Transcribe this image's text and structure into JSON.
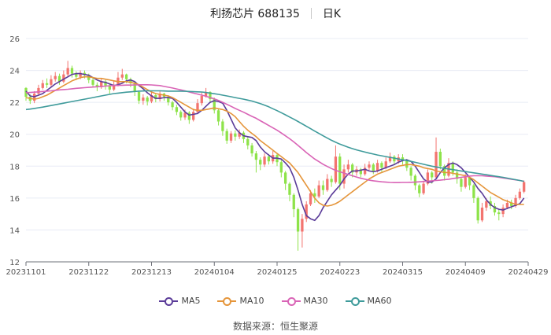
{
  "header": {
    "name": "利扬芯片 688135",
    "period": "日K"
  },
  "source": "数据来源：恒生聚源",
  "colors": {
    "up": "#f3746f",
    "down": "#8ee34a",
    "ma5": "#5b3c99",
    "ma10": "#e5953a",
    "ma30": "#d964b6",
    "ma60": "#3f9b9b"
  },
  "chart_data": {
    "type": "candlestick",
    "title": "利扬芯片 688135",
    "ylim": [
      12,
      26
    ],
    "yticks": [
      12,
      14,
      16,
      18,
      20,
      22,
      24,
      26
    ],
    "x_ticks": [
      "20231101",
      "20231122",
      "20231213",
      "20240104",
      "20240125",
      "20240223",
      "20240315",
      "20240409",
      "20240429"
    ],
    "x_tick_positions": [
      0,
      15,
      30,
      45,
      60,
      75,
      90,
      105,
      120
    ],
    "legend": [
      "MA5",
      "MA10",
      "MA30",
      "MA60"
    ],
    "candles": [
      [
        22.9,
        22.35,
        22.95,
        22.1
      ],
      [
        22.35,
        22.1,
        22.5,
        21.9
      ],
      [
        22.1,
        22.55,
        22.7,
        21.95
      ],
      [
        22.55,
        22.9,
        23.1,
        22.4
      ],
      [
        22.9,
        23.2,
        23.4,
        22.8
      ],
      [
        23.2,
        23.1,
        23.5,
        22.9
      ],
      [
        23.1,
        23.45,
        23.7,
        23.0
      ],
      [
        23.45,
        23.65,
        23.9,
        23.3
      ],
      [
        23.65,
        23.3,
        23.8,
        23.1
      ],
      [
        23.3,
        23.75,
        24.0,
        23.2
      ],
      [
        23.75,
        24.15,
        24.6,
        23.6
      ],
      [
        24.15,
        23.8,
        24.3,
        23.55
      ],
      [
        23.8,
        23.6,
        23.95,
        23.4
      ],
      [
        23.6,
        23.85,
        24.0,
        23.45
      ],
      [
        23.85,
        23.7,
        24.0,
        23.5
      ],
      [
        23.7,
        23.4,
        23.8,
        23.2
      ],
      [
        23.4,
        23.1,
        23.55,
        22.95
      ],
      [
        23.1,
        22.95,
        23.25,
        22.7
      ],
      [
        22.95,
        23.3,
        23.5,
        22.85
      ],
      [
        23.3,
        23.05,
        23.4,
        22.8
      ],
      [
        23.05,
        22.8,
        23.2,
        22.55
      ],
      [
        22.8,
        23.1,
        23.35,
        22.7
      ],
      [
        23.1,
        23.55,
        23.9,
        23.0
      ],
      [
        23.55,
        23.75,
        24.1,
        23.4
      ],
      [
        23.75,
        23.45,
        23.8,
        23.2
      ],
      [
        23.45,
        23.2,
        23.55,
        22.95
      ],
      [
        23.2,
        22.65,
        23.3,
        22.4
      ],
      [
        22.65,
        22.1,
        22.75,
        21.9
      ],
      [
        22.1,
        22.3,
        22.5,
        21.85
      ],
      [
        22.3,
        22.05,
        22.4,
        21.8
      ],
      [
        22.05,
        22.45,
        22.7,
        21.95
      ],
      [
        22.45,
        22.2,
        22.55,
        22.0
      ],
      [
        22.2,
        22.55,
        22.75,
        22.05
      ],
      [
        22.55,
        22.35,
        22.6,
        22.1
      ],
      [
        22.35,
        22.0,
        22.45,
        21.8
      ],
      [
        22.0,
        21.7,
        22.1,
        21.5
      ],
      [
        21.7,
        21.4,
        21.85,
        21.2
      ],
      [
        21.4,
        21.05,
        21.5,
        20.85
      ],
      [
        21.05,
        21.35,
        21.55,
        20.9
      ],
      [
        21.35,
        20.9,
        21.45,
        20.65
      ],
      [
        20.9,
        21.4,
        21.6,
        20.8
      ],
      [
        21.4,
        21.95,
        22.2,
        21.3
      ],
      [
        21.95,
        22.4,
        22.65,
        21.8
      ],
      [
        22.4,
        22.65,
        22.9,
        22.3
      ],
      [
        22.65,
        22.2,
        22.7,
        21.95
      ],
      [
        22.2,
        21.5,
        22.3,
        21.3
      ],
      [
        21.5,
        20.8,
        21.6,
        20.55
      ],
      [
        20.8,
        20.2,
        20.95,
        19.9
      ],
      [
        20.2,
        19.6,
        20.35,
        19.4
      ],
      [
        19.6,
        20.05,
        20.2,
        19.45
      ],
      [
        20.05,
        19.85,
        20.25,
        19.6
      ],
      [
        19.85,
        20.1,
        20.3,
        19.7
      ],
      [
        20.1,
        19.7,
        20.2,
        19.45
      ],
      [
        19.7,
        19.3,
        19.85,
        19.05
      ],
      [
        19.3,
        18.8,
        19.45,
        18.6
      ],
      [
        18.8,
        18.4,
        18.95,
        17.6
      ],
      [
        18.4,
        18.1,
        18.55,
        17.75
      ],
      [
        18.1,
        18.6,
        18.8,
        17.95
      ],
      [
        18.6,
        18.3,
        18.75,
        18.1
      ],
      [
        18.3,
        18.7,
        18.95,
        18.15
      ],
      [
        18.7,
        18.25,
        18.8,
        18.0
      ],
      [
        18.25,
        17.6,
        18.4,
        17.3
      ],
      [
        17.6,
        16.9,
        17.7,
        16.5
      ],
      [
        16.9,
        16.2,
        17.0,
        15.8
      ],
      [
        16.2,
        15.3,
        16.3,
        14.8
      ],
      [
        15.3,
        13.9,
        15.4,
        12.7
      ],
      [
        13.9,
        14.7,
        15.0,
        12.9
      ],
      [
        14.7,
        15.6,
        15.8,
        14.5
      ],
      [
        15.6,
        16.3,
        16.5,
        15.5
      ],
      [
        16.3,
        16.1,
        16.6,
        15.7
      ],
      [
        16.1,
        16.8,
        17.1,
        16.0
      ],
      [
        16.8,
        16.5,
        17.1,
        16.2
      ],
      [
        16.5,
        17.2,
        17.5,
        16.4
      ],
      [
        17.2,
        17.0,
        17.4,
        16.7
      ],
      [
        17.0,
        18.6,
        19.3,
        16.9
      ],
      [
        18.6,
        16.9,
        18.8,
        16.5
      ],
      [
        16.9,
        17.8,
        18.1,
        16.6
      ],
      [
        17.8,
        18.1,
        18.4,
        17.6
      ],
      [
        18.1,
        17.6,
        18.2,
        17.3
      ],
      [
        17.6,
        17.8,
        18.0,
        17.4
      ],
      [
        17.8,
        17.5,
        17.9,
        17.3
      ],
      [
        17.5,
        17.9,
        18.15,
        17.4
      ],
      [
        17.9,
        18.1,
        18.3,
        17.75
      ],
      [
        18.1,
        17.7,
        18.2,
        17.5
      ],
      [
        17.7,
        18.2,
        18.4,
        17.6
      ],
      [
        18.2,
        17.9,
        18.3,
        17.65
      ],
      [
        17.9,
        18.3,
        18.55,
        17.8
      ],
      [
        18.3,
        18.6,
        18.85,
        18.2
      ],
      [
        18.6,
        18.3,
        18.7,
        18.1
      ],
      [
        18.3,
        18.55,
        18.75,
        18.15
      ],
      [
        18.55,
        18.35,
        18.75,
        18.1
      ],
      [
        18.35,
        17.9,
        18.45,
        17.7
      ],
      [
        17.9,
        17.4,
        18.0,
        17.1
      ],
      [
        17.4,
        16.8,
        17.5,
        16.5
      ],
      [
        16.8,
        16.3,
        16.9,
        16.05
      ],
      [
        16.3,
        16.9,
        17.1,
        16.2
      ],
      [
        16.9,
        17.6,
        17.8,
        16.8
      ],
      [
        17.6,
        17.3,
        17.7,
        16.9
      ],
      [
        17.3,
        18.9,
        19.8,
        17.2
      ],
      [
        18.9,
        18.0,
        19.1,
        17.8
      ],
      [
        18.0,
        17.4,
        18.1,
        17.1
      ],
      [
        17.4,
        18.2,
        18.5,
        17.3
      ],
      [
        18.2,
        17.6,
        18.3,
        17.4
      ],
      [
        17.6,
        17.2,
        17.8,
        16.9
      ],
      [
        17.2,
        16.7,
        17.3,
        16.4
      ],
      [
        16.7,
        17.3,
        17.5,
        16.6
      ],
      [
        17.3,
        16.8,
        17.4,
        16.5
      ],
      [
        16.8,
        16.0,
        16.9,
        15.7
      ],
      [
        16.0,
        14.6,
        16.1,
        14.4
      ],
      [
        14.6,
        15.4,
        15.7,
        14.5
      ],
      [
        15.4,
        15.8,
        16.0,
        15.2
      ],
      [
        15.8,
        15.5,
        16.1,
        15.3
      ],
      [
        15.5,
        15.1,
        15.7,
        14.9
      ],
      [
        15.1,
        15.0,
        15.3,
        14.6
      ],
      [
        15.0,
        15.4,
        15.6,
        14.8
      ],
      [
        15.4,
        15.7,
        15.9,
        15.3
      ],
      [
        15.7,
        15.5,
        15.9,
        15.3
      ],
      [
        15.5,
        16.0,
        16.2,
        15.4
      ],
      [
        16.0,
        16.4,
        16.6,
        15.9
      ],
      [
        16.4,
        17.0,
        17.1,
        16.3
      ]
    ],
    "ma_series": [
      {
        "name": "MA5",
        "values": [
          22.7,
          22.4,
          22.35,
          22.45,
          22.55,
          22.75,
          22.95,
          23.15,
          23.3,
          23.45,
          23.6,
          23.75,
          23.8,
          23.8,
          23.75,
          23.7,
          23.55,
          23.4,
          23.3,
          23.25,
          23.15,
          23.05,
          23.1,
          23.2,
          23.35,
          23.4,
          23.3,
          23.05,
          22.85,
          22.6,
          22.4,
          22.25,
          22.25,
          22.3,
          22.3,
          22.25,
          22.0,
          21.7,
          21.4,
          21.2,
          21.25,
          21.3,
          21.5,
          21.75,
          22.0,
          22.1,
          22.05,
          21.95,
          21.5,
          20.95,
          20.4,
          20.1,
          19.9,
          19.85,
          19.8,
          19.6,
          19.2,
          18.9,
          18.7,
          18.5,
          18.5,
          18.45,
          18.2,
          17.9,
          17.3,
          16.5,
          15.6,
          14.9,
          14.7,
          14.6,
          14.9,
          15.4,
          15.8,
          16.2,
          16.5,
          16.8,
          17.2,
          17.5,
          17.7,
          17.7,
          17.75,
          17.8,
          17.7,
          17.65,
          17.7,
          17.8,
          17.9,
          18.0,
          18.1,
          18.25,
          18.35,
          18.4,
          18.3,
          18.0,
          17.6,
          17.2,
          17.0,
          17.0,
          17.2,
          17.6,
          17.9,
          18.1,
          18.2,
          18.1,
          17.9,
          17.6,
          17.3,
          17.0,
          16.6,
          16.3,
          15.9,
          15.6,
          15.4,
          15.3,
          15.25,
          15.35,
          15.45,
          15.55,
          15.65,
          16.0
        ]
      },
      {
        "name": "MA10",
        "values": [
          22.3,
          22.25,
          22.2,
          22.25,
          22.35,
          22.45,
          22.6,
          22.75,
          22.9,
          23.05,
          23.2,
          23.35,
          23.45,
          23.55,
          23.6,
          23.6,
          23.55,
          23.5,
          23.5,
          23.45,
          23.4,
          23.35,
          23.3,
          23.3,
          23.3,
          23.25,
          23.2,
          23.1,
          22.95,
          22.8,
          22.65,
          22.55,
          22.5,
          22.45,
          22.4,
          22.3,
          22.15,
          22.0,
          21.85,
          21.7,
          21.55,
          21.5,
          21.5,
          21.55,
          21.6,
          21.65,
          21.6,
          21.55,
          21.45,
          21.3,
          21.1,
          20.8,
          20.5,
          20.25,
          20.05,
          19.85,
          19.6,
          19.4,
          19.2,
          19.0,
          18.8,
          18.6,
          18.4,
          18.2,
          17.9,
          17.6,
          17.2,
          16.8,
          16.4,
          16.0,
          15.7,
          15.55,
          15.5,
          15.55,
          15.65,
          15.8,
          16.0,
          16.2,
          16.4,
          16.6,
          16.8,
          17.0,
          17.2,
          17.35,
          17.5,
          17.6,
          17.7,
          17.8,
          17.9,
          18.0,
          18.05,
          18.1,
          18.1,
          18.05,
          18.0,
          17.9,
          17.85,
          17.8,
          17.7,
          17.65,
          17.6,
          17.6,
          17.55,
          17.5,
          17.45,
          17.4,
          17.3,
          17.15,
          16.95,
          16.75,
          16.55,
          16.35,
          16.2,
          16.05,
          15.9,
          15.8,
          15.7,
          15.6,
          15.6,
          15.6
        ]
      },
      {
        "name": "MA30",
        "values": [
          22.6,
          22.62,
          22.64,
          22.66,
          22.68,
          22.7,
          22.72,
          22.75,
          22.78,
          22.8,
          22.82,
          22.85,
          22.88,
          22.9,
          22.92,
          22.94,
          22.96,
          22.98,
          23.0,
          23.02,
          23.04,
          23.05,
          23.06,
          23.07,
          23.08,
          23.08,
          23.09,
          23.1,
          23.1,
          23.1,
          23.09,
          23.07,
          23.05,
          23.0,
          22.95,
          22.9,
          22.84,
          22.78,
          22.72,
          22.65,
          22.58,
          22.52,
          22.45,
          22.38,
          22.3,
          22.22,
          22.12,
          22.0,
          21.88,
          21.75,
          21.62,
          21.5,
          21.38,
          21.25,
          21.12,
          21.0,
          20.85,
          20.7,
          20.55,
          20.4,
          20.25,
          20.08,
          19.9,
          19.72,
          19.52,
          19.3,
          19.08,
          18.85,
          18.65,
          18.45,
          18.28,
          18.12,
          17.98,
          17.85,
          17.74,
          17.65,
          17.56,
          17.48,
          17.4,
          17.32,
          17.24,
          17.18,
          17.12,
          17.08,
          17.05,
          17.02,
          17.0,
          16.98,
          16.97,
          16.97,
          16.98,
          16.98,
          16.99,
          17.0,
          17.02,
          17.04,
          17.06,
          17.08,
          17.1,
          17.12,
          17.15,
          17.18,
          17.22,
          17.26,
          17.3,
          17.34,
          17.38,
          17.4,
          17.4,
          17.4,
          17.38,
          17.36,
          17.34,
          17.3,
          17.26,
          17.22,
          17.18,
          17.14,
          17.1,
          17.05
        ]
      },
      {
        "name": "MA60",
        "values": [
          21.55,
          21.58,
          21.62,
          21.66,
          21.7,
          21.75,
          21.8,
          21.85,
          21.9,
          21.95,
          22.0,
          22.05,
          22.1,
          22.15,
          22.2,
          22.25,
          22.3,
          22.35,
          22.4,
          22.45,
          22.5,
          22.55,
          22.58,
          22.61,
          22.64,
          22.66,
          22.68,
          22.7,
          22.71,
          22.72,
          22.72,
          22.72,
          22.72,
          22.71,
          22.7,
          22.7,
          22.7,
          22.7,
          22.69,
          22.68,
          22.67,
          22.66,
          22.65,
          22.62,
          22.58,
          22.54,
          22.5,
          22.45,
          22.4,
          22.35,
          22.3,
          22.25,
          22.2,
          22.14,
          22.08,
          22.0,
          21.92,
          21.82,
          21.72,
          21.6,
          21.48,
          21.35,
          21.22,
          21.08,
          20.94,
          20.8,
          20.65,
          20.5,
          20.35,
          20.2,
          20.05,
          19.9,
          19.76,
          19.62,
          19.5,
          19.38,
          19.28,
          19.18,
          19.1,
          19.02,
          18.95,
          18.88,
          18.82,
          18.76,
          18.7,
          18.65,
          18.6,
          18.55,
          18.5,
          18.45,
          18.4,
          18.35,
          18.3,
          18.24,
          18.18,
          18.12,
          18.06,
          18.0,
          17.95,
          17.9,
          17.86,
          17.82,
          17.78,
          17.74,
          17.7,
          17.66,
          17.62,
          17.58,
          17.54,
          17.5,
          17.46,
          17.42,
          17.38,
          17.34,
          17.3,
          17.25,
          17.2,
          17.15,
          17.1,
          17.05
        ]
      }
    ]
  },
  "legend_items": [
    {
      "label": "MA5"
    },
    {
      "label": "MA10"
    },
    {
      "label": "MA30"
    },
    {
      "label": "MA60"
    }
  ]
}
